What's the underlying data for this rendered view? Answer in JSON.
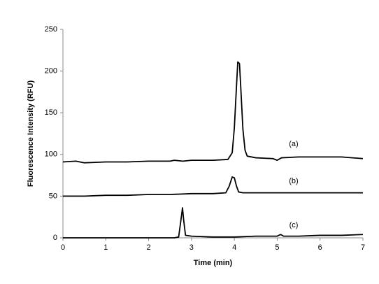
{
  "chart_data": {
    "type": "line",
    "xlabel": "Time (min)",
    "ylabel": "Fluorescence Intensity (RFU)",
    "xlim": [
      0,
      7
    ],
    "xticks": [
      0,
      1,
      2,
      3,
      4,
      5,
      6,
      7
    ],
    "ylim": [
      0,
      250
    ],
    "yticks": [
      0,
      50,
      100,
      150,
      200,
      250
    ],
    "grid": false,
    "series": [
      {
        "name": "(a)",
        "color": "#000000",
        "x": [
          0,
          0.3,
          0.5,
          1,
          1.5,
          2,
          2.5,
          2.6,
          2.8,
          3,
          3.5,
          3.85,
          3.95,
          4.0,
          4.05,
          4.08,
          4.12,
          4.15,
          4.2,
          4.25,
          4.3,
          4.5,
          4.9,
          5.0,
          5.1,
          5.5,
          6,
          6.5,
          7
        ],
        "values": [
          91,
          92,
          90,
          91,
          91,
          92,
          92,
          93,
          92,
          93,
          93,
          94,
          102,
          132,
          182,
          211,
          209,
          180,
          130,
          105,
          98,
          96,
          95,
          93,
          96,
          97,
          97,
          97,
          95
        ]
      },
      {
        "name": "(b)",
        "color": "#000000",
        "x": [
          0,
          0.5,
          1,
          1.5,
          2,
          2.5,
          3,
          3.5,
          3.8,
          3.88,
          3.95,
          4.0,
          4.05,
          4.1,
          4.2,
          4.5,
          5,
          6,
          7
        ],
        "values": [
          50,
          50,
          51,
          51,
          52,
          52,
          53,
          53,
          54,
          62,
          73,
          72,
          62,
          55,
          54,
          54,
          54,
          54,
          54
        ]
      },
      {
        "name": "(c)",
        "color": "#000000",
        "x": [
          0,
          1,
          2,
          2.6,
          2.7,
          2.75,
          2.79,
          2.82,
          2.86,
          3,
          3.5,
          4,
          4.5,
          5,
          5.08,
          5.15,
          5.5,
          6,
          6.5,
          7
        ],
        "values": [
          0,
          0,
          0,
          0,
          1,
          20,
          36,
          20,
          3,
          2,
          1,
          1,
          2,
          2,
          4,
          2,
          2,
          3,
          3,
          4
        ]
      }
    ]
  }
}
